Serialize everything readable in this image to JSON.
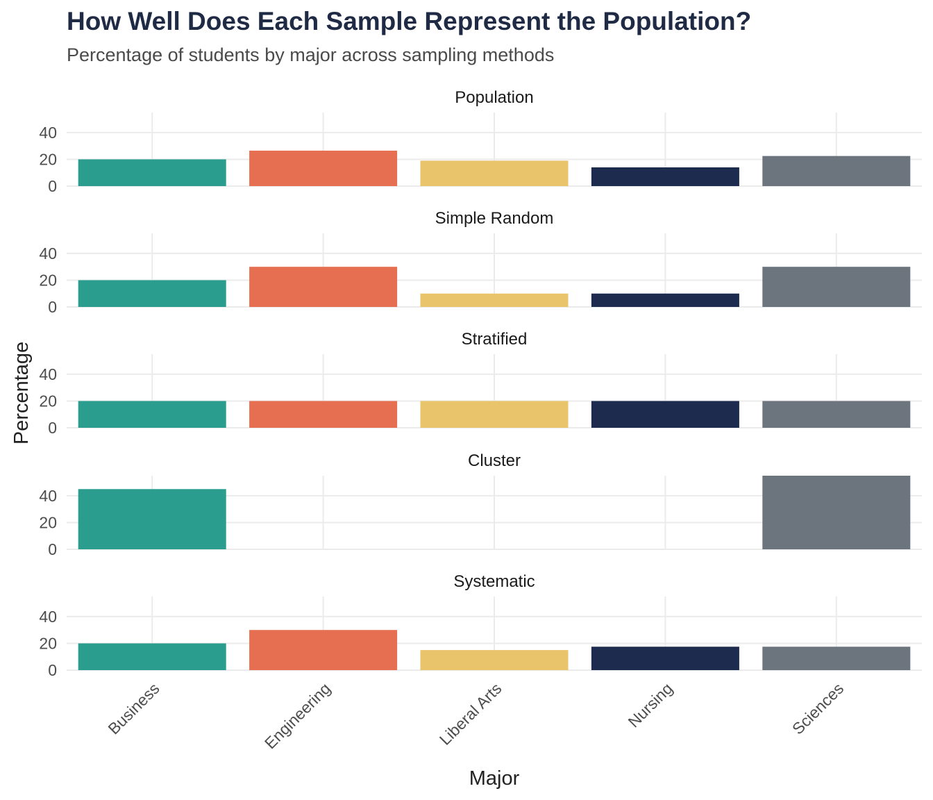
{
  "chart_data": {
    "type": "bar",
    "title": "How Well Does Each Sample Represent the Population?",
    "subtitle": "Percentage of students by major across sampling methods",
    "xlabel": "Major",
    "ylabel": "Percentage",
    "categories": [
      "Business",
      "Engineering",
      "Liberal Arts",
      "Nursing",
      "Sciences"
    ],
    "colors": [
      "#2a9d8f",
      "#e76f51",
      "#e9c46a",
      "#1d2b4f",
      "#6c757d"
    ],
    "yticks": [
      0,
      20,
      40
    ],
    "ylim": [
      0,
      55
    ],
    "grid": true,
    "legend": "none",
    "facets": [
      {
        "name": "Population",
        "values": [
          20,
          26.5,
          19,
          14,
          22.5
        ]
      },
      {
        "name": "Simple Random",
        "values": [
          20,
          30,
          10,
          10,
          30
        ]
      },
      {
        "name": "Stratified",
        "values": [
          20,
          20,
          20,
          20,
          20
        ]
      },
      {
        "name": "Cluster",
        "values": [
          45,
          0,
          0,
          0,
          55
        ]
      },
      {
        "name": "Systematic",
        "values": [
          20,
          30,
          15,
          17.5,
          17.5
        ]
      }
    ]
  }
}
